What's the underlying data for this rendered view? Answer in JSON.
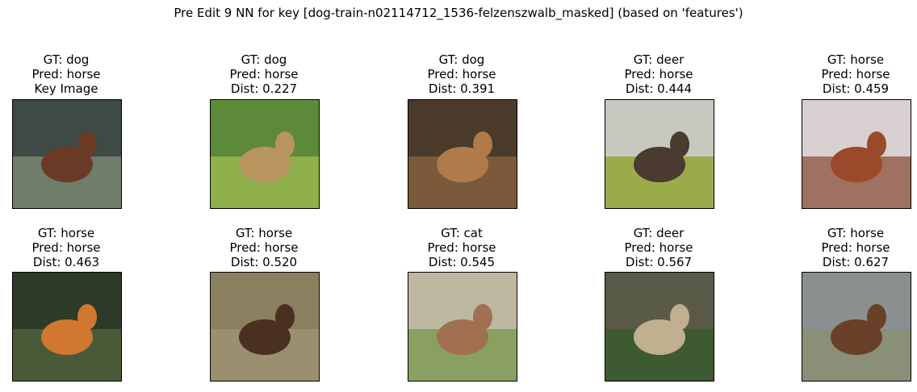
{
  "title": "Pre Edit 9 NN for key [dog-train-n02114712_1536-felzenszwalb_masked] (based on 'features')",
  "panels": [
    {
      "lines": [
        "GT: dog",
        "Pred: horse",
        "Key Image"
      ]
    },
    {
      "lines": [
        "GT: dog",
        "Pred: horse",
        "Dist: 0.227"
      ]
    },
    {
      "lines": [
        "GT: dog",
        "Pred: horse",
        "Dist: 0.391"
      ]
    },
    {
      "lines": [
        "GT: deer",
        "Pred: horse",
        "Dist: 0.444"
      ]
    },
    {
      "lines": [
        "GT: horse",
        "Pred: horse",
        "Dist: 0.459"
      ]
    },
    {
      "lines": [
        "GT: horse",
        "Pred: horse",
        "Dist: 0.463"
      ]
    },
    {
      "lines": [
        "GT: horse",
        "Pred: horse",
        "Dist: 0.520"
      ]
    },
    {
      "lines": [
        "GT: cat",
        "Pred: horse",
        "Dist: 0.545"
      ]
    },
    {
      "lines": [
        "GT: deer",
        "Pred: horse",
        "Dist: 0.567"
      ]
    },
    {
      "lines": [
        "GT: horse",
        "Pred: horse",
        "Dist: 0.627"
      ]
    }
  ]
}
